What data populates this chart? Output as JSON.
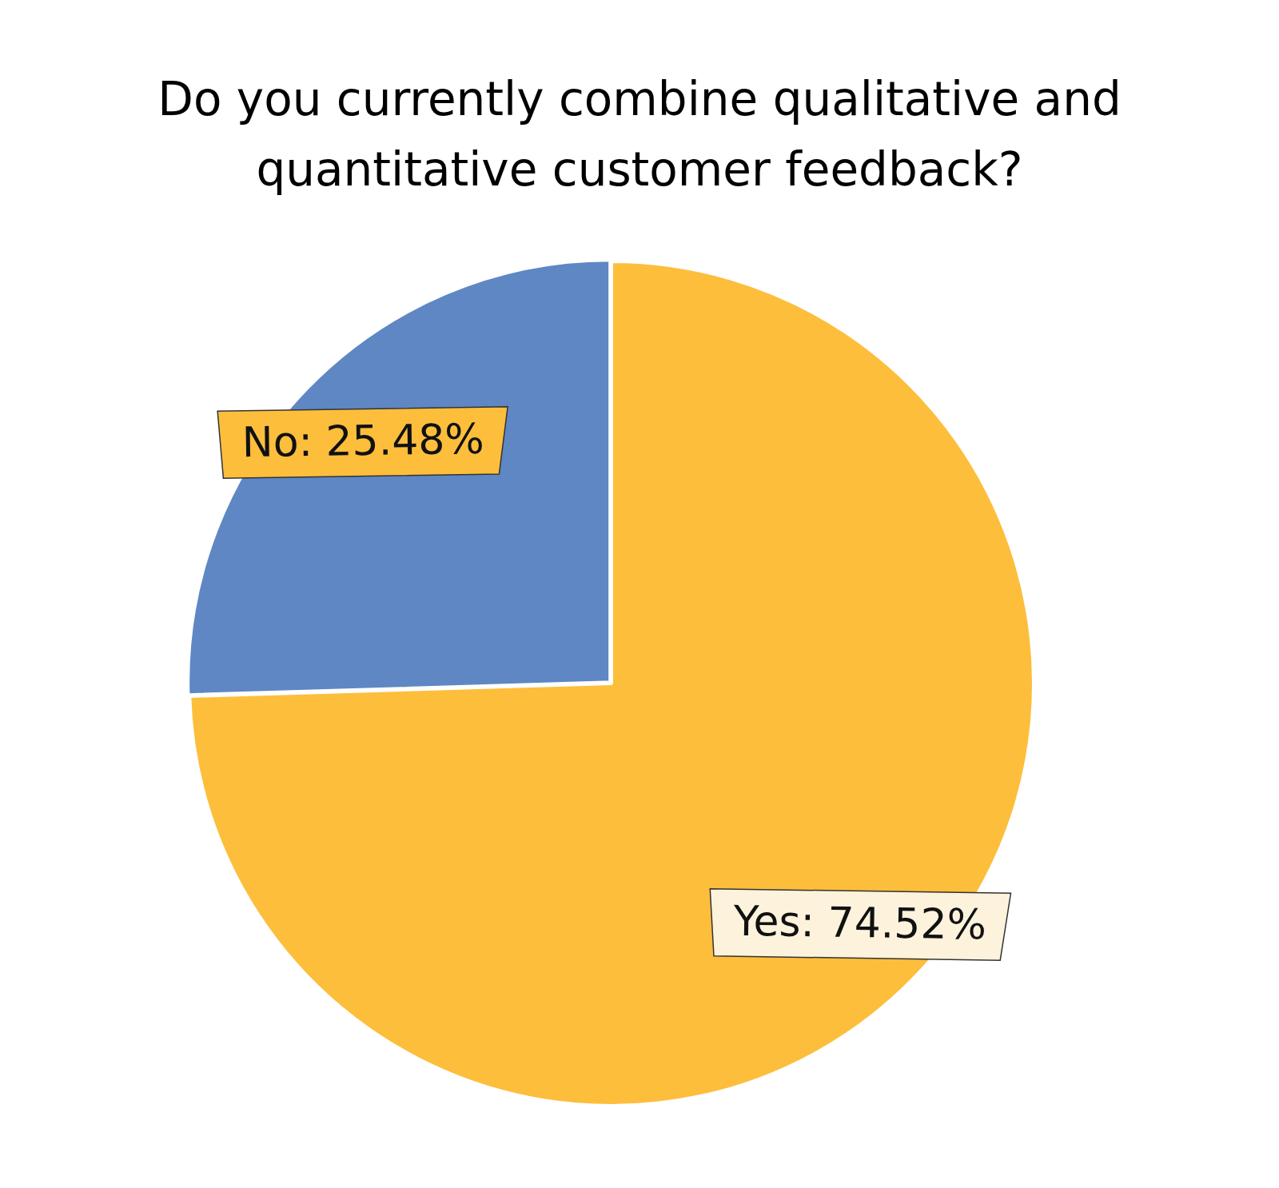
{
  "chart_data": {
    "type": "pie",
    "title": "Do you currently combine qualitative and quantitative customer feedback?",
    "categories": [
      "Yes",
      "No"
    ],
    "values": [
      74.52,
      25.48
    ],
    "colors": [
      "#fdbe3c",
      "#5e87c4"
    ],
    "value_labels": [
      "74.52%",
      "25.48%"
    ],
    "legend": false
  }
}
